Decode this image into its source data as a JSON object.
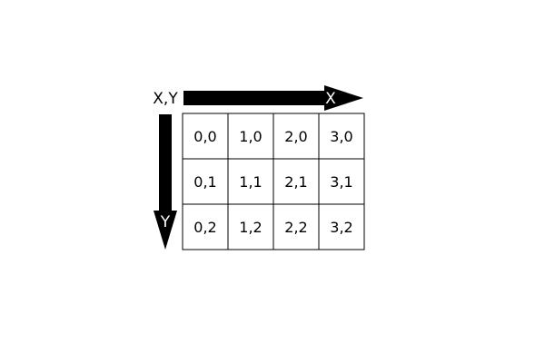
{
  "origin_label": "X,Y",
  "x_axis_label": "X",
  "y_axis_label": "Y",
  "grid": {
    "rows": [
      [
        "0,0",
        "1,0",
        "2,0",
        "3,0"
      ],
      [
        "0,1",
        "1,1",
        "2,1",
        "3,1"
      ],
      [
        "0,2",
        "1,2",
        "2,2",
        "3,2"
      ]
    ]
  },
  "colors": {
    "arrow": "#000000",
    "grid_line": "#000000",
    "background": "#ffffff"
  }
}
